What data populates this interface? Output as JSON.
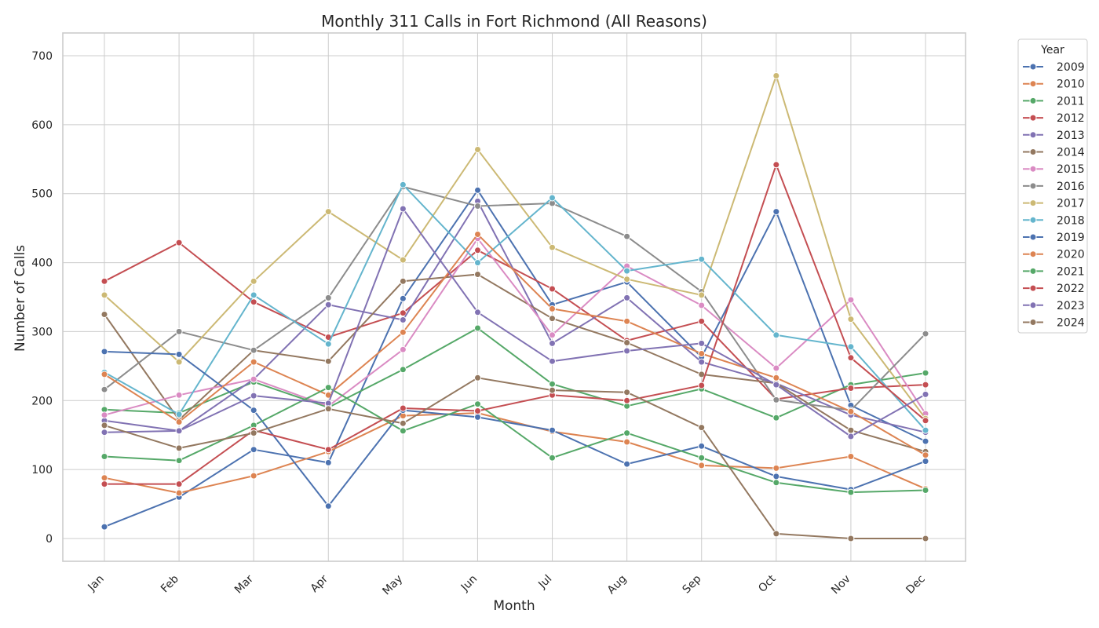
{
  "chart_data": {
    "type": "line",
    "title": "Monthly 311 Calls in Fort Richmond (All Reasons)",
    "xlabel": "Month",
    "ylabel": "Number of Calls",
    "categories": [
      "Jan",
      "Feb",
      "Mar",
      "Apr",
      "May",
      "Jun",
      "Jul",
      "Aug",
      "Sep",
      "Oct",
      "Nov",
      "Dec"
    ],
    "ylim": [
      -33,
      733
    ],
    "yticks": [
      0,
      100,
      200,
      300,
      400,
      500,
      600,
      700
    ],
    "grid": true,
    "legend": {
      "title": "Year",
      "placement": "outside-top-right"
    },
    "series": [
      {
        "name": "2009",
        "color": "#4c72b0",
        "values": [
          17,
          60,
          129,
          110,
          348,
          505,
          339,
          372,
          263,
          474,
          193,
          141
        ]
      },
      {
        "name": "2010",
        "color": "#dd8452",
        "values": [
          88,
          66,
          91,
          126,
          178,
          182,
          155,
          140,
          106,
          102,
          119,
          72
        ]
      },
      {
        "name": "2011",
        "color": "#55a868",
        "values": [
          187,
          182,
          227,
          190,
          245,
          305,
          224,
          192,
          217,
          175,
          223,
          240
        ]
      },
      {
        "name": "2012",
        "color": "#c44e52",
        "values": [
          373,
          429,
          343,
          292,
          327,
          418,
          362,
          287,
          315,
          202,
          218,
          223
        ]
      },
      {
        "name": "2013",
        "color": "#8172b3",
        "values": [
          171,
          156,
          231,
          339,
          317,
          489,
          283,
          349,
          256,
          225,
          179,
          154
        ]
      },
      {
        "name": "2014",
        "color": "#937860",
        "values": [
          325,
          172,
          273,
          257,
          373,
          383,
          319,
          284,
          238,
          225,
          157,
          126
        ]
      },
      {
        "name": "2015",
        "color": "#da8bc3",
        "values": [
          179,
          208,
          231,
          192,
          274,
          435,
          295,
          395,
          338,
          247,
          346,
          181
        ]
      },
      {
        "name": "2016",
        "color": "#8c8c8c",
        "values": [
          216,
          300,
          273,
          349,
          510,
          482,
          486,
          438,
          358,
          201,
          186,
          297
        ]
      },
      {
        "name": "2017",
        "color": "#ccb974",
        "values": [
          353,
          256,
          373,
          474,
          404,
          564,
          422,
          376,
          353,
          671,
          318,
          174
        ]
      },
      {
        "name": "2018",
        "color": "#64b5cd",
        "values": [
          241,
          180,
          353,
          282,
          513,
          400,
          494,
          388,
          405,
          295,
          278,
          157
        ]
      },
      {
        "name": "2019",
        "color": "#4c72b0",
        "values": [
          271,
          267,
          186,
          47,
          186,
          176,
          157,
          108,
          134,
          90,
          71,
          112
        ]
      },
      {
        "name": "2020",
        "color": "#dd8452",
        "values": [
          238,
          169,
          256,
          208,
          299,
          441,
          333,
          315,
          268,
          233,
          184,
          121
        ]
      },
      {
        "name": "2021",
        "color": "#55a868",
        "values": [
          119,
          113,
          164,
          219,
          156,
          195,
          117,
          153,
          117,
          81,
          67,
          70
        ]
      },
      {
        "name": "2022",
        "color": "#c44e52",
        "values": [
          79,
          79,
          157,
          129,
          189,
          185,
          208,
          200,
          222,
          542,
          262,
          171
        ]
      },
      {
        "name": "2023",
        "color": "#8172b3",
        "values": [
          154,
          156,
          207,
          196,
          478,
          328,
          257,
          272,
          283,
          223,
          148,
          209
        ]
      },
      {
        "name": "2024",
        "color": "#937860",
        "values": [
          164,
          131,
          153,
          188,
          167,
          233,
          215,
          212,
          161,
          7,
          0,
          0
        ]
      }
    ]
  }
}
